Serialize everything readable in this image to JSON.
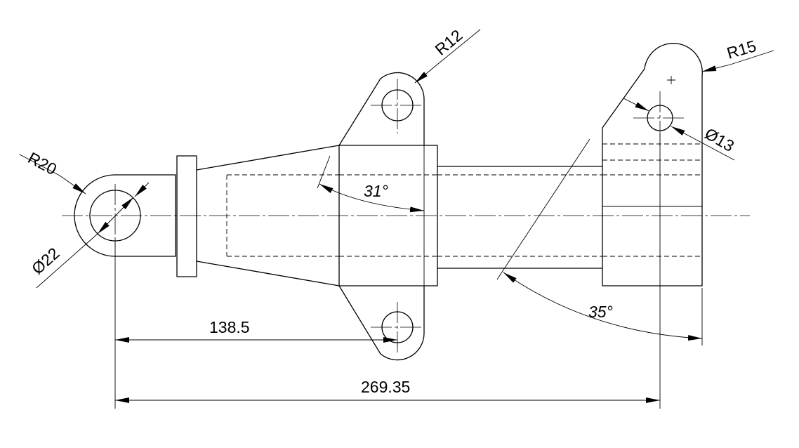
{
  "dimensions": {
    "r20": "R20",
    "d22": "Ø22",
    "r12": "R12",
    "r15": "R15",
    "d13": "Ø13",
    "a31": "31°",
    "a35": "35°",
    "l1385": "138.5",
    "l26935": "269.35"
  }
}
